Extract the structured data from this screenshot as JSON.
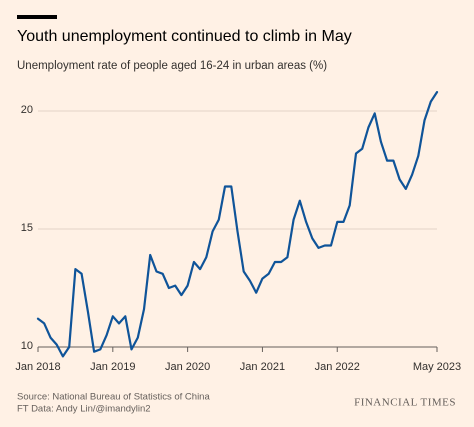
{
  "chart_data": {
    "type": "line",
    "title": "Youth unemployment continued to climb in May",
    "subtitle": "Unemployment rate of people aged 16-24 in urban areas (%)",
    "source": "Source: National Bureau of Statistics of China",
    "credit": "FT Data: Andy Lin/@imandylin2",
    "brand": "FINANCIAL TIMES",
    "x": [
      "2018-01",
      "2018-02",
      "2018-03",
      "2018-04",
      "2018-05",
      "2018-06",
      "2018-07",
      "2018-08",
      "2018-09",
      "2018-10",
      "2018-11",
      "2018-12",
      "2019-01",
      "2019-02",
      "2019-03",
      "2019-04",
      "2019-05",
      "2019-06",
      "2019-07",
      "2019-08",
      "2019-09",
      "2019-10",
      "2019-11",
      "2019-12",
      "2020-01",
      "2020-02",
      "2020-03",
      "2020-04",
      "2020-05",
      "2020-06",
      "2020-07",
      "2020-08",
      "2020-09",
      "2020-10",
      "2020-11",
      "2020-12",
      "2021-01",
      "2021-02",
      "2021-03",
      "2021-04",
      "2021-05",
      "2021-06",
      "2021-07",
      "2021-08",
      "2021-09",
      "2021-10",
      "2021-11",
      "2021-12",
      "2022-01",
      "2022-02",
      "2022-03",
      "2022-04",
      "2022-05",
      "2022-06",
      "2022-07",
      "2022-08",
      "2022-09",
      "2022-10",
      "2022-11",
      "2022-12",
      "2023-01",
      "2023-02",
      "2023-03",
      "2023-04",
      "2023-05"
    ],
    "series": [
      {
        "name": "Youth unemployment rate",
        "color": "#0f5499",
        "values": [
          11.2,
          11.0,
          10.4,
          10.1,
          9.6,
          10.0,
          13.3,
          13.1,
          11.5,
          9.8,
          9.9,
          10.5,
          11.3,
          11.0,
          11.3,
          9.9,
          10.4,
          11.6,
          13.9,
          13.2,
          13.1,
          12.5,
          12.6,
          12.2,
          12.6,
          13.6,
          13.3,
          13.8,
          14.9,
          15.4,
          16.8,
          16.8,
          14.9,
          13.2,
          12.8,
          12.3,
          12.9,
          13.1,
          13.6,
          13.6,
          13.8,
          15.4,
          16.2,
          15.3,
          14.6,
          14.2,
          14.3,
          14.3,
          15.3,
          15.3,
          16.0,
          18.2,
          18.4,
          19.3,
          19.9,
          18.7,
          17.9,
          17.9,
          17.1,
          16.7,
          17.3,
          18.1,
          19.6,
          20.4,
          20.8
        ]
      }
    ],
    "xticks": [
      {
        "value": "2018-01",
        "label": "Jan 2018"
      },
      {
        "value": "2019-01",
        "label": "Jan 2019"
      },
      {
        "value": "2020-01",
        "label": "Jan 2020"
      },
      {
        "value": "2021-01",
        "label": "Jan 2021"
      },
      {
        "value": "2022-01",
        "label": "Jan 2022"
      },
      {
        "value": "2023-05",
        "label": "May 2023"
      }
    ],
    "ylim": [
      10,
      21.5
    ],
    "yticks": [
      10,
      15,
      20
    ],
    "grid": true
  }
}
